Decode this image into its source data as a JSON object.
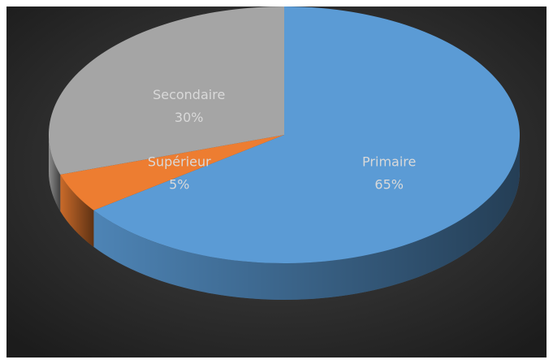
{
  "chart_data": {
    "type": "pie",
    "categories": [
      "Primaire",
      "Supérieur",
      "Secondaire"
    ],
    "values": [
      65,
      5,
      30
    ],
    "value_labels": [
      "65%",
      "5%",
      "30%"
    ],
    "colors": [
      "#5b9bd5",
      "#ed7d31",
      "#a5a5a5"
    ]
  }
}
